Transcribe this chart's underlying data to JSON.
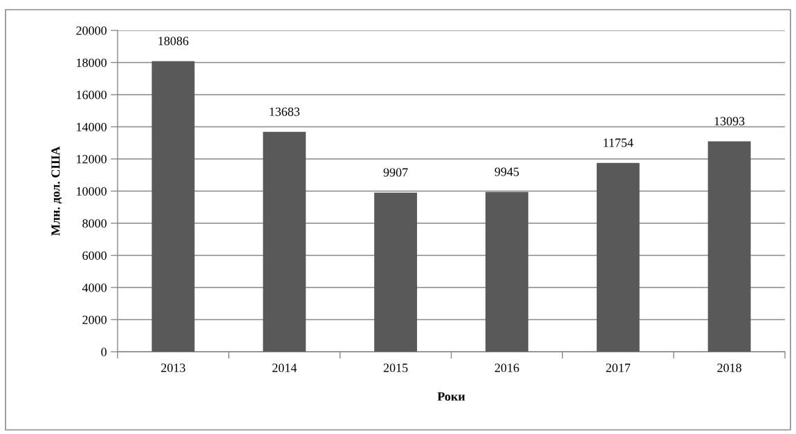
{
  "chart_data": {
    "type": "bar",
    "xlabel": "Роки",
    "ylabel": "Млн. дол. США",
    "categories": [
      "2013",
      "2014",
      "2015",
      "2016",
      "2017",
      "2018"
    ],
    "values": [
      18086,
      13683,
      9907,
      9945,
      11754,
      13093
    ],
    "color": "#595959",
    "ylim": [
      0,
      20000
    ],
    "yticks": [
      0,
      2000,
      4000,
      6000,
      8000,
      10000,
      12000,
      14000,
      16000,
      18000,
      20000
    ],
    "grid": "y",
    "data_labels": true
  }
}
